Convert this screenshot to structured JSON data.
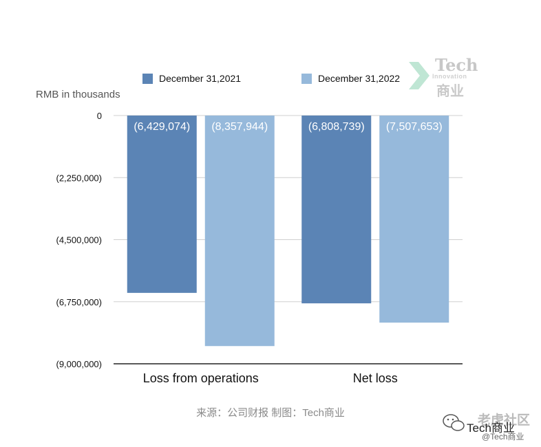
{
  "chart_data": {
    "type": "bar",
    "categories": [
      "Loss from operations",
      "Net loss"
    ],
    "series": [
      {
        "name": "December 31,2021",
        "color": "#5b84b5",
        "values": [
          -6429074,
          -6808739
        ],
        "labels": [
          "(6,429,074)",
          "(6,808,739)"
        ]
      },
      {
        "name": "December 31,2022",
        "color": "#96b9db",
        "values": [
          -8357944,
          -7507653
        ],
        "labels": [
          "(8,357,944)",
          "(7,507,653)"
        ]
      }
    ],
    "ylabel": "RMB in thousands",
    "ylim": [
      -9000000,
      0
    ],
    "yticks": [
      0,
      -2250000,
      -4500000,
      -6750000,
      -9000000
    ],
    "ytick_labels": [
      "0",
      "(2,250,000)",
      "(4,500,000)",
      "(6,750,000)",
      "(9,000,000)"
    ],
    "grid": true,
    "legend_position": "top"
  },
  "source_text": "来源：公司财报 制图：Tech商业",
  "logo": {
    "line1": "Tech",
    "line2": "Innovation",
    "line3": "商业"
  },
  "watermark": {
    "line1": "老虎社区",
    "line2": "Tech商业",
    "line3": "@Tech商业"
  }
}
